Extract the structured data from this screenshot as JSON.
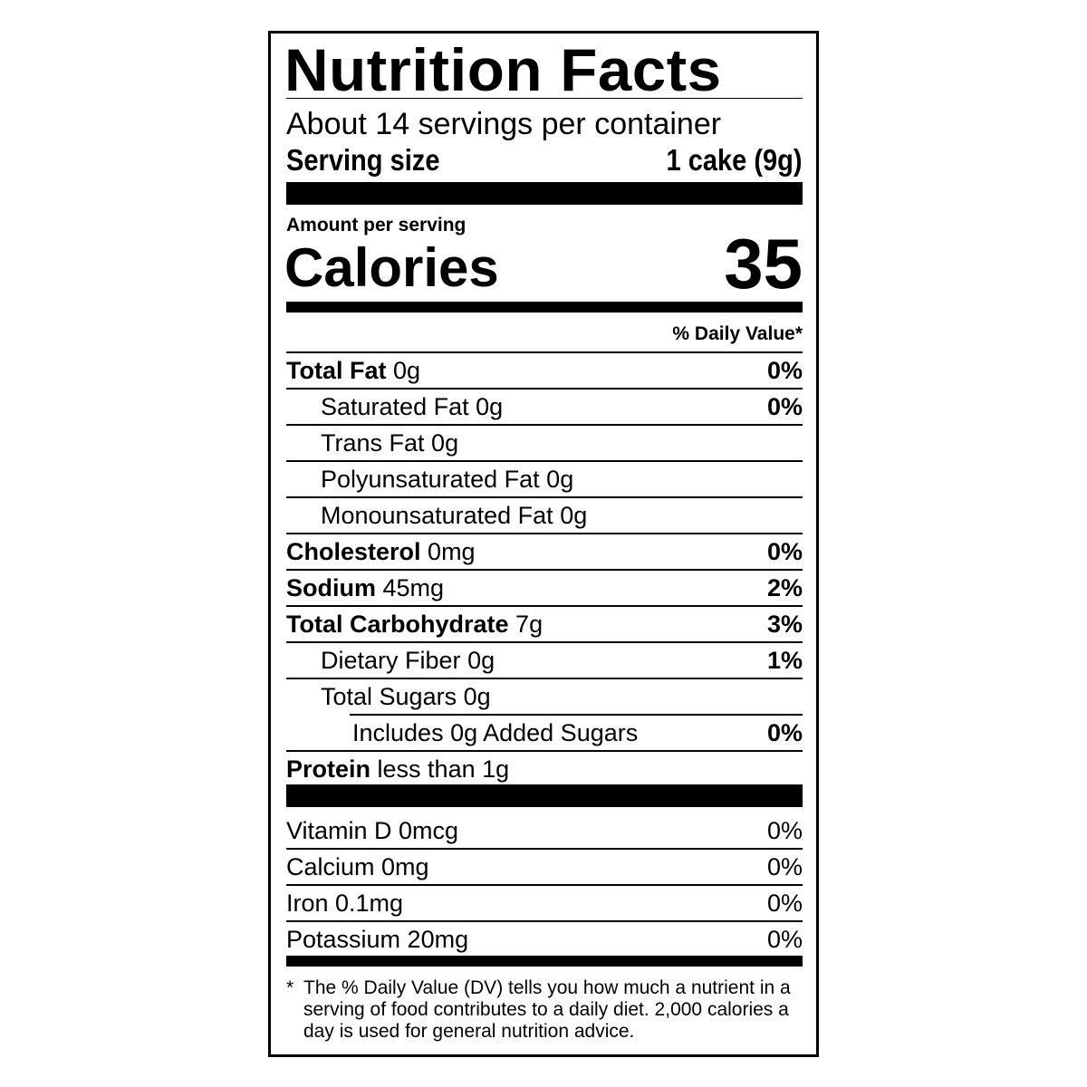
{
  "title": "Nutrition Facts",
  "servings": "About 14 servings per container",
  "serving_size_label": "Serving size",
  "serving_size_value": "1 cake (9g)",
  "amount_per_serving": "Amount per serving",
  "calories_label": "Calories",
  "calories_value": "35",
  "dv_header": "% Daily Value*",
  "nutrients": [
    {
      "name": "Total Fat",
      "amount": "0g",
      "dv": "0%",
      "bold": true
    },
    {
      "name": "Saturated Fat",
      "amount": "0g",
      "dv": "0%",
      "indent": 1
    },
    {
      "name": "Trans Fat",
      "amount": "0g",
      "dv": "",
      "indent": 1
    },
    {
      "name": "Polyunsaturated Fat",
      "amount": "0g",
      "dv": "",
      "indent": 1
    },
    {
      "name": "Monounsaturated Fat",
      "amount": "0g",
      "dv": "",
      "indent": 1
    },
    {
      "name": "Cholesterol",
      "amount": "0mg",
      "dv": "0%",
      "bold": true
    },
    {
      "name": "Sodium",
      "amount": "45mg",
      "dv": "2%",
      "bold": true
    },
    {
      "name": "Total Carbohydrate",
      "amount": "7g",
      "dv": "3%",
      "bold": true
    },
    {
      "name": "Dietary Fiber",
      "amount": "0g",
      "dv": "1%",
      "indent": 1
    },
    {
      "name": "Total Sugars",
      "amount": "0g",
      "dv": "",
      "indent": 1
    },
    {
      "name": "Includes 0g Added Sugars",
      "amount": "",
      "dv": "0%",
      "indent": 2
    },
    {
      "name": "Protein",
      "amount": "less than 1g",
      "dv": "",
      "bold": true
    }
  ],
  "vitamins": [
    {
      "name": "Vitamin D 0mcg",
      "dv": "0%"
    },
    {
      "name": "Calcium 0mg",
      "dv": "0%"
    },
    {
      "name": "Iron 0.1mg",
      "dv": "0%"
    },
    {
      "name": "Potassium 20mg",
      "dv": "0%"
    }
  ],
  "footnote_marker": "*",
  "footnote": "The % Daily Value (DV) tells you how much a nutrient in a serving of food contributes to a daily diet. 2,000 calories a day is used for general nutrition advice."
}
